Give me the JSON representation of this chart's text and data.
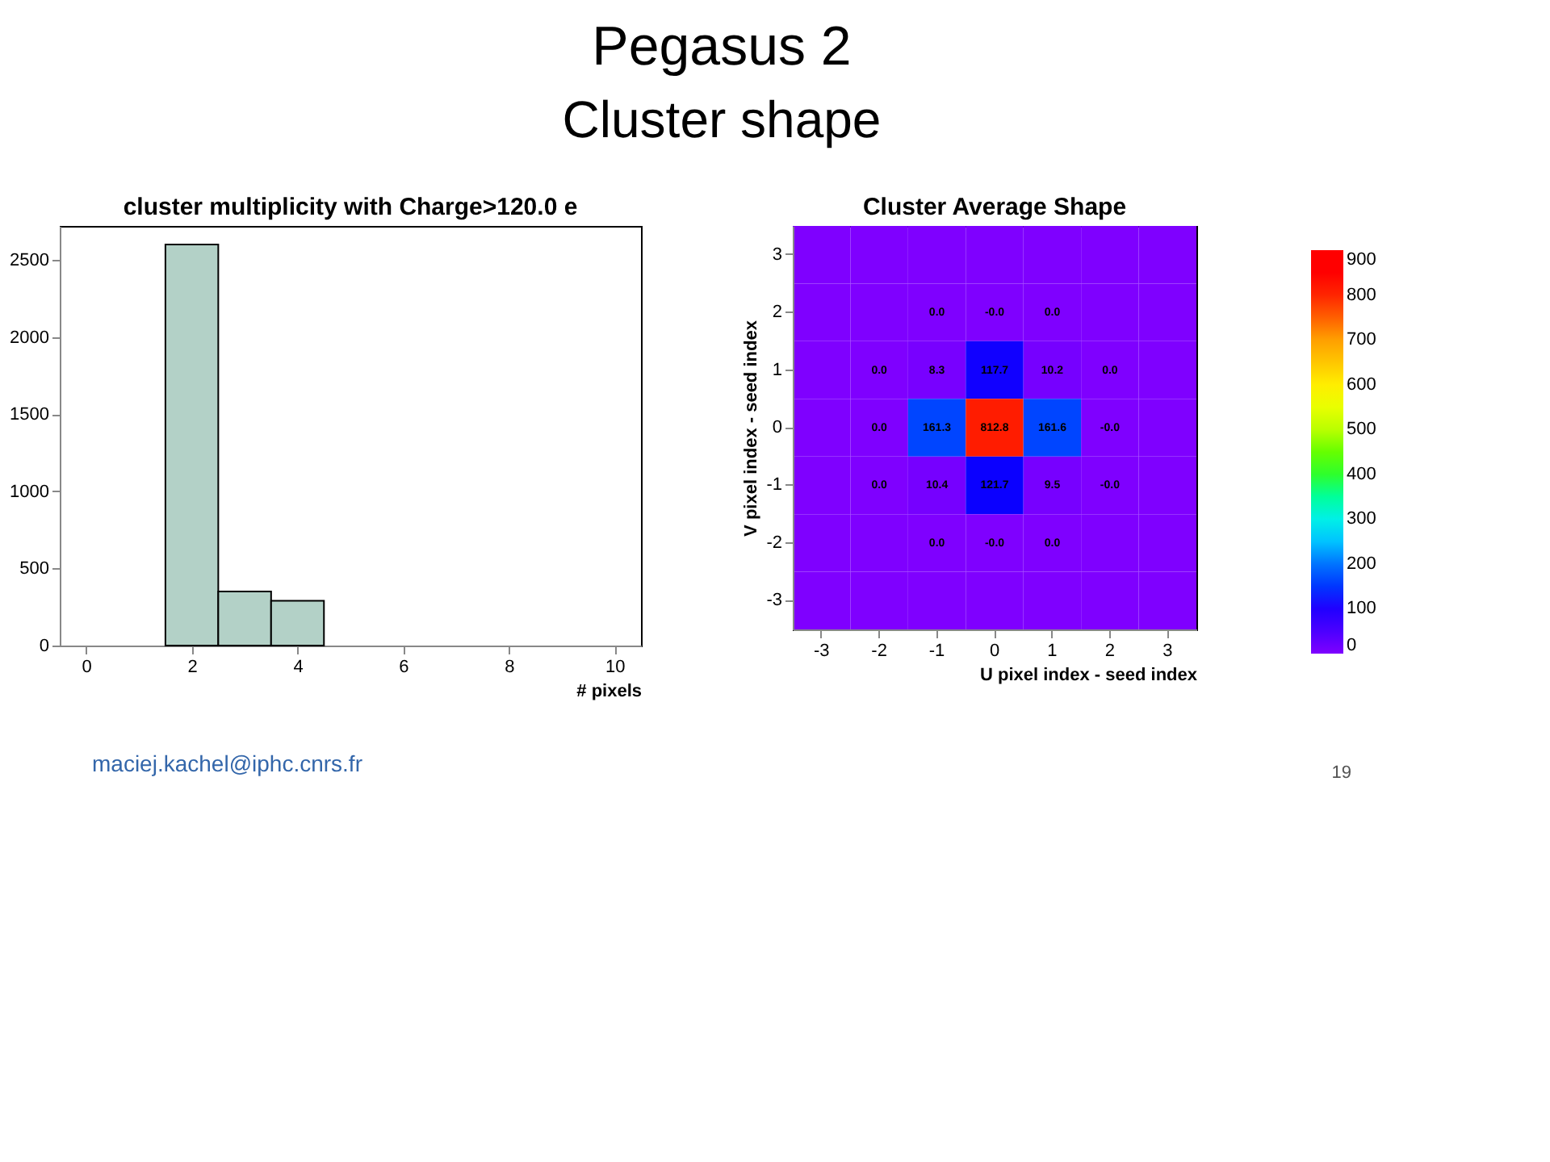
{
  "chart_data": [
    {
      "type": "other",
      "title": "Pegasus 2",
      "subtitle": "Cluster shape"
    },
    {
      "type": "histogram",
      "title": "cluster multiplicity with Charge>120.0 e",
      "xlabel": "# pixels",
      "bins": [
        1.5,
        2.5,
        3.5,
        4.5
      ],
      "values": [
        2600,
        350,
        290
      ],
      "color": "#b3d1c7",
      "xlim": [
        -0.5,
        10.5
      ],
      "xticks": [
        0,
        2,
        4,
        6,
        8,
        10
      ],
      "ylim": [
        0,
        2720
      ],
      "yticks": [
        0,
        500,
        1000,
        1500,
        2000,
        2500
      ],
      "grid": false
    },
    {
      "type": "heatmap",
      "title": "Cluster Average Shape",
      "xlabel": "U pixel index - seed index",
      "ylabel": "V pixel index - seed index",
      "categories": [
        "-3",
        "-2",
        "-1",
        "0",
        "1",
        "2",
        "3"
      ],
      "y_categories": [
        "3",
        "2",
        "1",
        "0",
        "-1",
        "-2",
        "-3"
      ],
      "cells": [
        [
          0,
          0,
          0,
          0,
          0,
          0,
          0
        ],
        [
          0,
          0,
          0,
          0,
          0,
          0,
          0
        ],
        [
          0,
          0,
          8.3,
          117.7,
          10.2,
          0,
          0
        ],
        [
          0,
          0,
          161.3,
          812.8,
          161.6,
          0,
          0
        ],
        [
          0,
          0,
          10.4,
          121.7,
          9.5,
          0,
          0
        ],
        [
          0,
          0,
          0,
          0,
          0,
          0,
          0
        ],
        [
          0,
          0,
          0,
          0,
          0,
          0,
          0
        ]
      ],
      "cell_labels": [
        [
          null,
          null,
          null,
          null,
          null,
          null,
          null
        ],
        [
          null,
          null,
          "0.0",
          "-0.0",
          "0.0",
          null,
          null
        ],
        [
          null,
          "0.0",
          "8.3",
          "117.7",
          "10.2",
          "0.0",
          null
        ],
        [
          null,
          "0.0",
          "161.3",
          "812.8",
          "161.6",
          "-0.0",
          null
        ],
        [
          null,
          "0.0",
          "10.4",
          "121.7",
          "9.5",
          "-0.0",
          null
        ],
        [
          null,
          null,
          "0.0",
          "-0.0",
          "0.0",
          null,
          null
        ],
        [
          null,
          null,
          null,
          null,
          null,
          null,
          null
        ]
      ],
      "clim": [
        0,
        900
      ],
      "cticks": [
        0,
        100,
        200,
        300,
        400,
        500,
        600,
        700,
        800,
        900
      ]
    },
    {
      "type": "other",
      "annotations": [
        "maciej.kachel@iphc.cnrs.fr",
        "19"
      ]
    }
  ]
}
